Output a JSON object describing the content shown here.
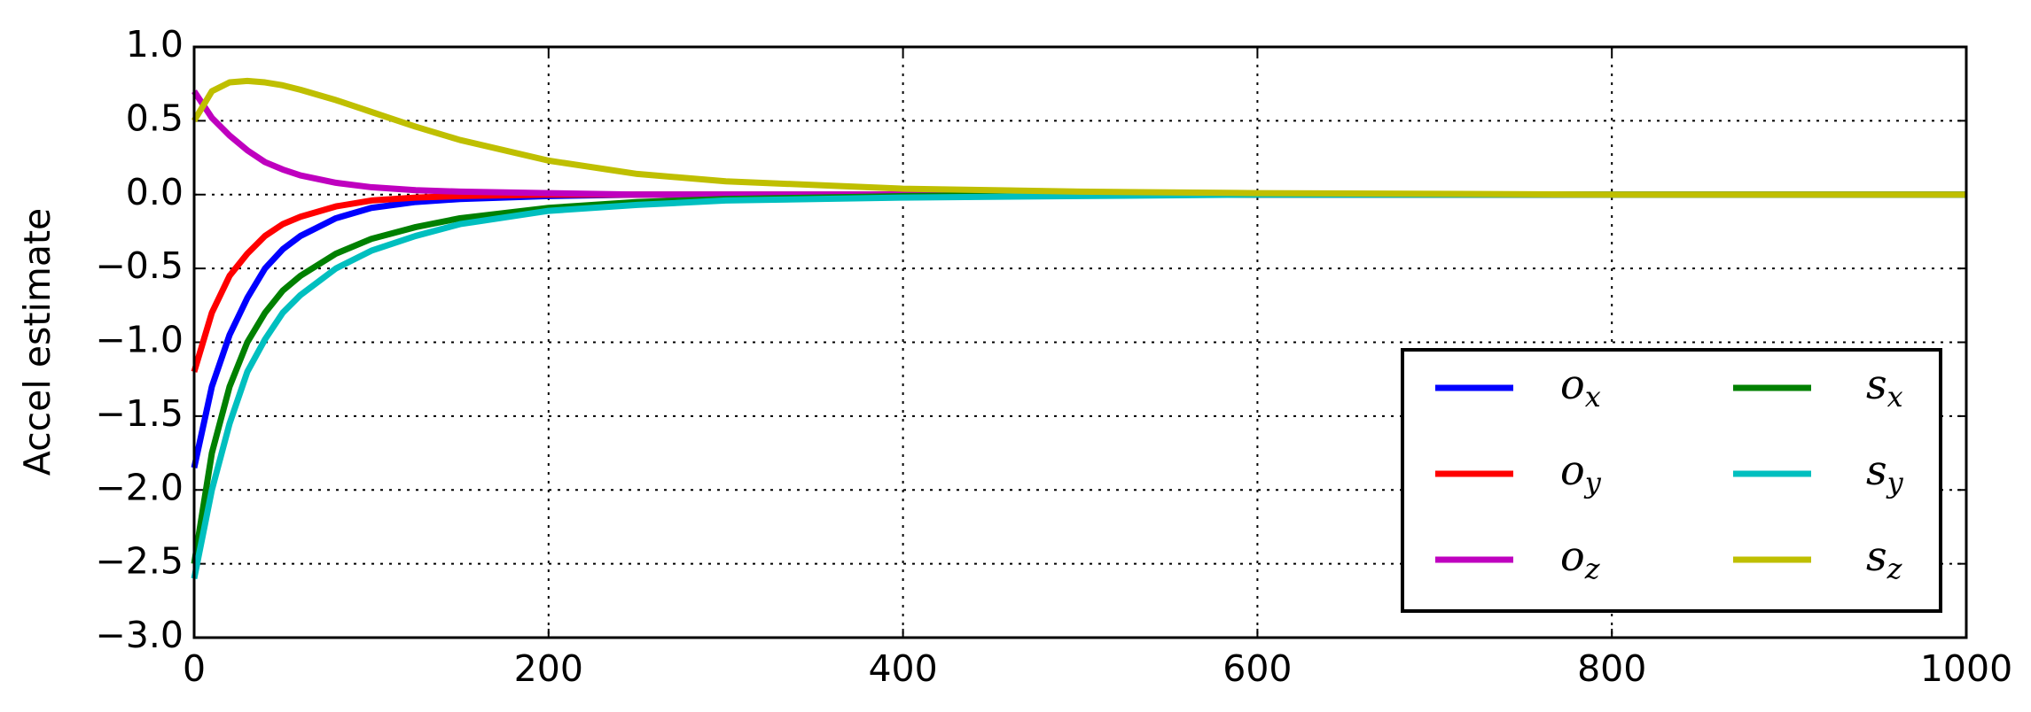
{
  "chart_data": {
    "type": "line",
    "ylabel": "Accel estimate",
    "x": [
      0,
      10,
      20,
      30,
      40,
      50,
      60,
      80,
      100,
      125,
      150,
      200,
      250,
      300,
      400,
      500,
      600,
      800,
      1000
    ],
    "series": [
      {
        "name": "o_x",
        "color": "#0000ff",
        "values": [
          -1.85,
          -1.3,
          -0.95,
          -0.7,
          -0.5,
          -0.37,
          -0.28,
          -0.16,
          -0.09,
          -0.05,
          -0.03,
          -0.01,
          0,
          0,
          0,
          0,
          0,
          0,
          0
        ]
      },
      {
        "name": "o_y",
        "color": "#ff0000",
        "values": [
          -1.2,
          -0.8,
          -0.55,
          -0.4,
          -0.28,
          -0.2,
          -0.15,
          -0.08,
          -0.04,
          -0.02,
          -0.01,
          0,
          0,
          0,
          0,
          0,
          0,
          0,
          0
        ]
      },
      {
        "name": "o_z",
        "color": "#bf00bf",
        "values": [
          0.7,
          0.52,
          0.4,
          0.3,
          0.22,
          0.17,
          0.13,
          0.08,
          0.05,
          0.03,
          0.02,
          0.01,
          0,
          0,
          0,
          0,
          0,
          0,
          0
        ]
      },
      {
        "name": "s_x",
        "color": "#008000",
        "values": [
          -2.5,
          -1.75,
          -1.3,
          -1.0,
          -0.8,
          -0.65,
          -0.55,
          -0.4,
          -0.3,
          -0.22,
          -0.16,
          -0.09,
          -0.05,
          -0.03,
          -0.01,
          0,
          0,
          0,
          0
        ]
      },
      {
        "name": "s_y",
        "color": "#00bfbf",
        "values": [
          -2.6,
          -2.0,
          -1.55,
          -1.2,
          -0.98,
          -0.8,
          -0.68,
          -0.5,
          -0.38,
          -0.28,
          -0.2,
          -0.11,
          -0.07,
          -0.04,
          -0.02,
          -0.01,
          0,
          0,
          0
        ]
      },
      {
        "name": "s_z",
        "color": "#bfbf00",
        "values": [
          0.5,
          0.7,
          0.76,
          0.77,
          0.76,
          0.74,
          0.71,
          0.64,
          0.56,
          0.46,
          0.37,
          0.23,
          0.14,
          0.09,
          0.04,
          0.02,
          0.01,
          0,
          0
        ]
      }
    ],
    "xlim": [
      0,
      1000
    ],
    "xticks": [
      0,
      200,
      400,
      600,
      800,
      1000
    ],
    "ylim": [
      -3,
      1
    ],
    "yticks": [
      {
        "value": -3,
        "label": "−3.0"
      },
      {
        "value": -2.5,
        "label": "−2.5"
      },
      {
        "value": -2,
        "label": "−2.0"
      },
      {
        "value": -1.5,
        "label": "−1.5"
      },
      {
        "value": -1,
        "label": "−1.0"
      },
      {
        "value": -0.5,
        "label": "−0.5"
      },
      {
        "value": 0,
        "label": "0.0"
      },
      {
        "value": 0.5,
        "label": "0.5"
      },
      {
        "value": 1,
        "label": "1.0"
      }
    ],
    "grid": true,
    "legend": "lower right",
    "legend_columns": 2
  }
}
